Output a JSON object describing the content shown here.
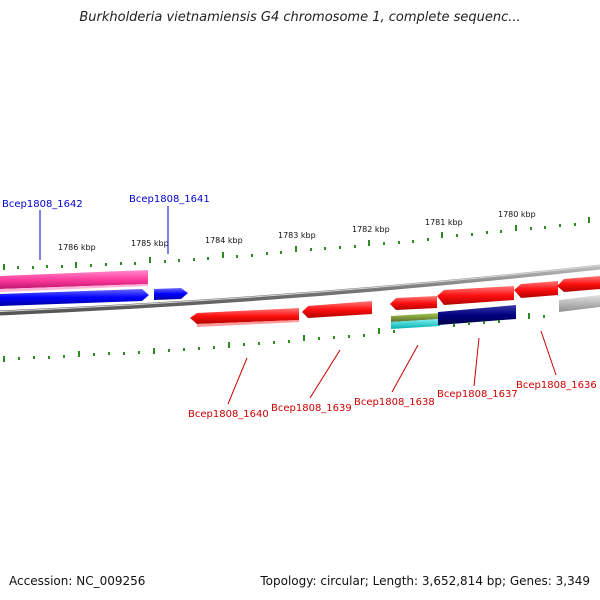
{
  "title": "Burkholderia vietnamiensis G4 chromosome 1, complete sequenc...",
  "footer": {
    "accession": "Accession: NC_009256",
    "summary": "Topology: circular; Length: 3,652,814 bp; Genes: 3,349"
  },
  "colors": {
    "forward_label": "#0000cc",
    "reverse_label": "#cc0000",
    "backbone": "#888888",
    "ticks": "#2e8b22",
    "forward_gene_pink": "#ff3d9e",
    "forward_gene_blue": "#0000ff",
    "reverse_gene_red": "#ff0000",
    "reverse_gene_navy": "#000080",
    "reverse_gene_olive": "#6b8e23",
    "reverse_gene_cyan": "#00cccc",
    "reverse_gene_grey": "#b0b0b0"
  },
  "scale": {
    "unit": "kbp",
    "tick_labels": [
      "1786 kbp",
      "1785 kbp",
      "1784 kbp",
      "1783 kbp",
      "1782 kbp",
      "1781 kbp",
      "1780 kbp"
    ]
  },
  "genes": {
    "forward": [
      {
        "label": "Bcep1808_1642",
        "color": "#ff3d9e"
      },
      {
        "label": "Bcep1808_1641",
        "color": "#0000ff"
      }
    ],
    "reverse": [
      {
        "label": "Bcep1808_1640",
        "color": "#ff0000"
      },
      {
        "label": "Bcep1808_1639",
        "color": "#ff0000"
      },
      {
        "label": "Bcep1808_1638",
        "color": "#ff0000"
      },
      {
        "label": "Bcep1808_1637",
        "color": "#ff0000"
      },
      {
        "label": "Bcep1808_1636",
        "color": "#ff0000"
      }
    ]
  }
}
